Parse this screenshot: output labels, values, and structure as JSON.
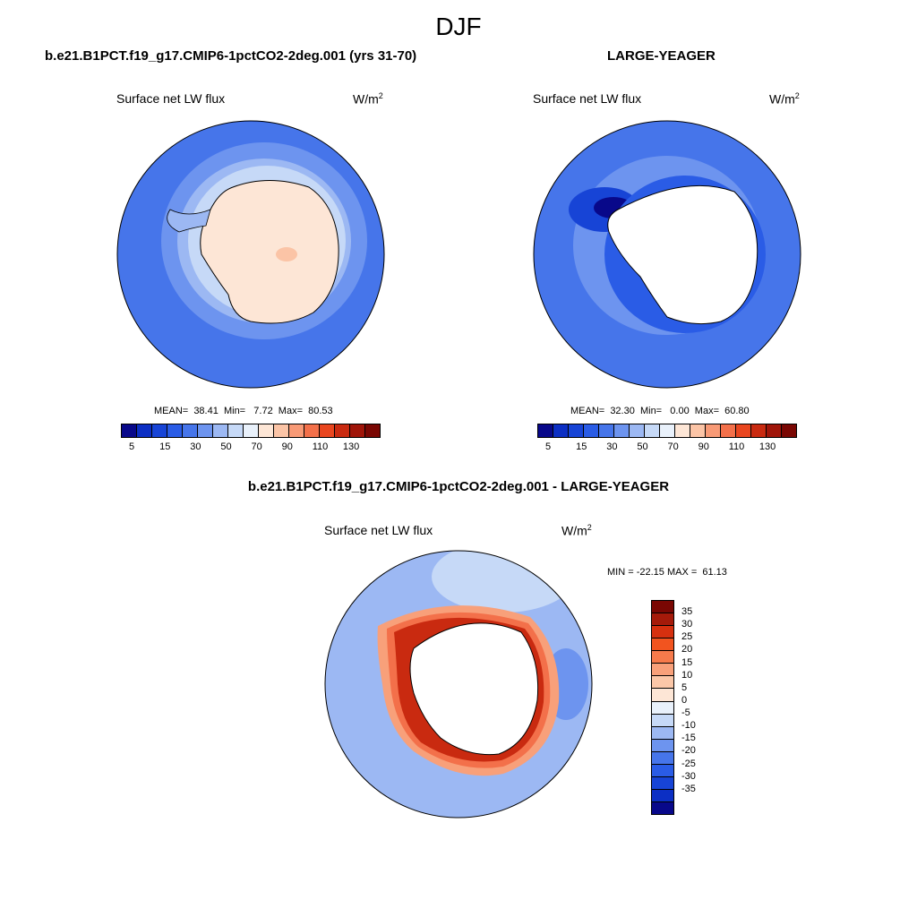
{
  "main_title": "DJF",
  "panels": {
    "top_left": {
      "title": "b.e21.B1PCT.f19_g17.CMIP6-1pctCO2-2deg.001 (yrs 31-70)",
      "variable": "Surface net LW flux",
      "units": "W/m",
      "units_sup": "2",
      "stats": "MEAN=  38.41  Min=   7.72  Max=  80.53"
    },
    "top_right": {
      "title": "LARGE-YEAGER",
      "variable": "Surface net LW flux",
      "units": "W/m",
      "units_sup": "2",
      "stats": "MEAN=  32.30  Min=   0.00  Max=  60.80"
    },
    "bottom": {
      "title": "b.e21.B1PCT.f19_g17.CMIP6-1pctCO2-2deg.001 - LARGE-YEAGER",
      "variable": "Surface net LW flux",
      "units": "W/m",
      "units_sup": "2",
      "stats": "MIN = -22.15 MAX =  61.13"
    }
  },
  "colorbar_abs": {
    "colors": [
      "#08088a",
      "#0c2fc4",
      "#1744d6",
      "#2a5ce6",
      "#4675ea",
      "#6d94ef",
      "#9cb8f3",
      "#c6d9f7",
      "#e9f1fb",
      "#fde6d6",
      "#fbc4a6",
      "#f89a76",
      "#f3704a",
      "#e9461f",
      "#c92a10",
      "#a01509",
      "#7a0703"
    ],
    "labels": [
      "5",
      "15",
      "30",
      "50",
      "70",
      "90",
      "110",
      "130"
    ]
  },
  "colorbar_diff": {
    "colors": [
      "#7a0703",
      "#a51a0a",
      "#d6300f",
      "#f2541f",
      "#f67a4b",
      "#f8a07a",
      "#fbc7a8",
      "#fde6d6",
      "#e9f1fb",
      "#c6d9f7",
      "#9cb8f3",
      "#6d94ef",
      "#4675ea",
      "#2a5ce6",
      "#1744d6",
      "#0c2fc4",
      "#08088a"
    ],
    "labels": [
      "35",
      "30",
      "25",
      "20",
      "15",
      "10",
      "5",
      "0",
      "-5",
      "-10",
      "-15",
      "-20",
      "-25",
      "-30",
      "-35"
    ]
  },
  "map_colors": {
    "ocean_abs_1": "#4675ea",
    "ocean_abs_2": "#6d94ef",
    "ocean_abs_3": "#9cb8f3",
    "land_abs": "#fde6d6",
    "land_abs_hi": "#fbc4a6",
    "ocean_diff_1": "#9cb8f3",
    "ocean_diff_2": "#c6d9f7",
    "ocean_diff_3": "#6d94ef",
    "coast_diff_hi": "#c92a10",
    "coast_diff_mid": "#f3704a",
    "coast_diff_lo": "#f8a07a"
  }
}
